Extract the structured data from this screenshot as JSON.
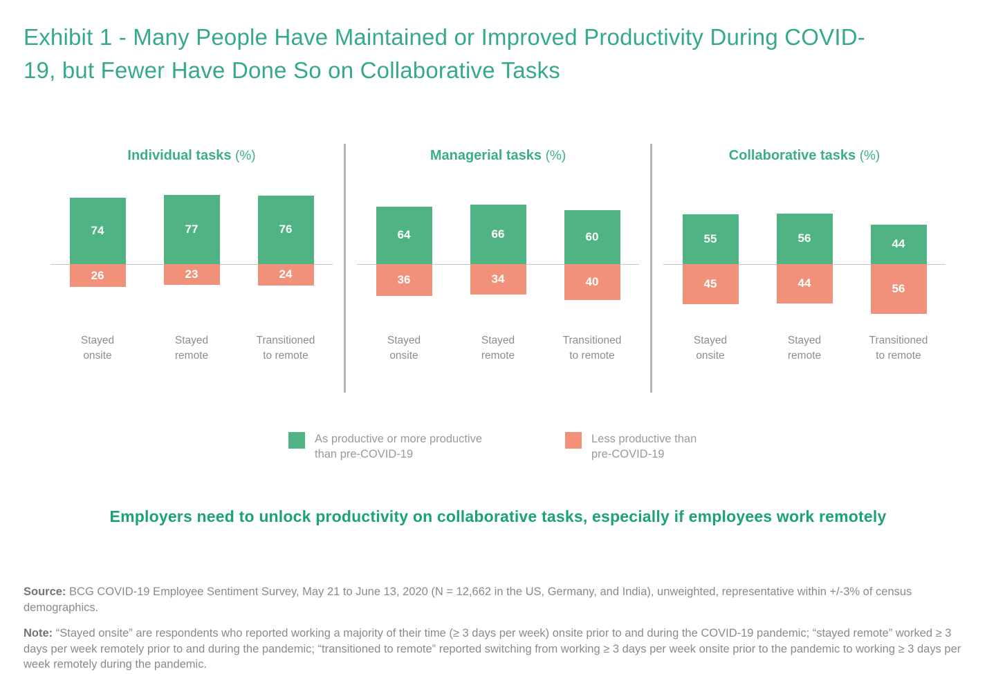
{
  "title": "Exhibit 1 - Many People Have Maintained or Improved Productivity During COVID-19, but Fewer Have Done So on Collaborative Tasks",
  "colors": {
    "title_green": "#36A98D",
    "panel_title_green": "#3BAE83",
    "bar_positive": "#4FB383",
    "bar_negative": "#F29179",
    "takeaway_green": "#1BA275",
    "label_gray": "#8D8D8D",
    "baseline_gray": "#C4C4C4",
    "divider_gray": "#B6B6B6"
  },
  "chart_data": {
    "type": "bar",
    "variant": "diverging-stacked-percentage",
    "unit_suffix": "(%)",
    "baseline_value": 0,
    "grid": false,
    "legend_position": "bottom-center",
    "categories": [
      [
        "Stayed",
        "onsite"
      ],
      [
        "Stayed",
        "remote"
      ],
      [
        "Transitioned",
        "to remote"
      ]
    ],
    "groups": [
      {
        "id": "individual",
        "title": "Individual tasks",
        "series": {
          "positive": [
            74,
            77,
            76
          ],
          "negative": [
            26,
            23,
            24
          ]
        }
      },
      {
        "id": "managerial",
        "title": "Managerial tasks",
        "series": {
          "positive": [
            64,
            66,
            60
          ],
          "negative": [
            36,
            34,
            40
          ]
        }
      },
      {
        "id": "collaborative",
        "title": "Collaborative tasks",
        "series": {
          "positive": [
            55,
            56,
            44
          ],
          "negative": [
            45,
            44,
            56
          ]
        }
      }
    ],
    "legend": [
      {
        "label": "As productive or more productive than pre-COVID-19",
        "color": "#4FB383"
      },
      {
        "label": "Less productive than pre-COVID-19",
        "color": "#F29179"
      }
    ]
  },
  "takeaway": "Employers need to unlock productivity on collaborative tasks, especially if employees work remotely",
  "source": {
    "label": "Source:",
    "text": "BCG COVID-19 Employee Sentiment Survey, May 21 to June 13, 2020 (N = 12,662 in the US, Germany, and India), unweighted, representative within +/-3% of census demographics."
  },
  "note": {
    "label": "Note:",
    "text": "“Stayed onsite” are respondents who reported working a majority of their time (≥ 3 days per week) onsite prior to and during the COVID-19 pandemic; “stayed remote” worked ≥ 3 days per week remotely prior to and during the pandemic; “transitioned to remote” reported switching from working ≥ 3 days per week onsite prior to the pandemic to working ≥ 3 days per week remotely during the pandemic."
  }
}
